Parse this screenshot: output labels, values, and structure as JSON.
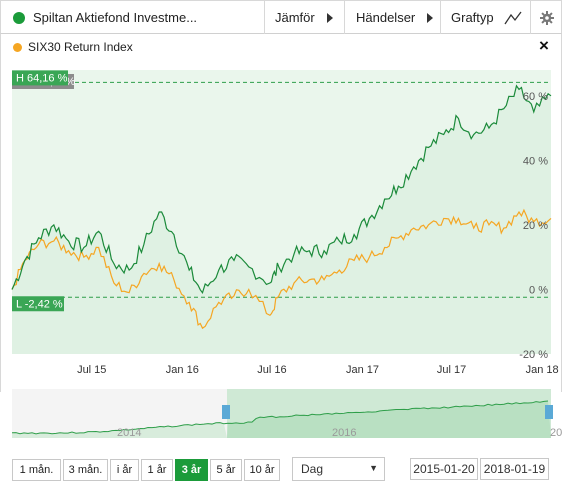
{
  "toolbar": {
    "fund_name": "Spiltan Aktiefond Investme...",
    "fund_color": "#1b9b3a",
    "compare_label": "Jämför",
    "events_label": "Händelser",
    "graphtype_label": "Graftyp",
    "settings_icon": "gear-icon"
  },
  "legend": {
    "series_name": "SIX30 Return Index",
    "series_color": "#f5a623",
    "close_symbol": "×"
  },
  "badges": {
    "change": "Utv. 60,03%",
    "high": "H 64,16 %",
    "low": "L -2,42 %"
  },
  "chart_data": {
    "type": "line",
    "y_unit": "%",
    "ylim": [
      -20,
      68
    ],
    "y_ticks": [
      "60 %",
      "40 %",
      "20 %",
      "0 %",
      "-20 %"
    ],
    "x_ticks": [
      "Jul 15",
      "Jan 16",
      "Jul 16",
      "Jan 17",
      "Jul 17",
      "Jan 18"
    ],
    "date_range": [
      "2015-01-20",
      "2018-01-19"
    ],
    "grid": "dashed high/low lines",
    "series": [
      {
        "color": "#1b8a3a",
        "x": [
          "2015-01-20",
          "2015-02-15",
          "2015-03-15",
          "2015-04-15",
          "2015-05-15",
          "2015-06-15",
          "2015-07-15",
          "2015-08-15",
          "2015-09-15",
          "2015-10-15",
          "2015-11-15",
          "2015-12-15",
          "2016-01-15",
          "2016-02-11",
          "2016-03-15",
          "2016-04-15",
          "2016-05-15",
          "2016-06-27",
          "2016-07-15",
          "2016-08-15",
          "2016-09-15",
          "2016-10-15",
          "2016-11-15",
          "2016-12-15",
          "2017-01-15",
          "2017-02-15",
          "2017-03-15",
          "2017-04-15",
          "2017-05-15",
          "2017-06-15",
          "2017-07-15",
          "2017-08-15",
          "2017-09-15",
          "2017-10-15",
          "2017-11-15",
          "2017-12-15",
          "2018-01-19"
        ],
        "y": [
          0,
          9,
          16,
          20,
          15,
          13,
          18,
          8,
          6,
          14,
          24,
          17,
          6,
          -1,
          6,
          9,
          7,
          2,
          7,
          11,
          12,
          12,
          15,
          17,
          22,
          28,
          32,
          38,
          44,
          48,
          53,
          48,
          50,
          56,
          62,
          55,
          60
        ]
      },
      {
        "color": "#f5a623",
        "x": [
          "2015-01-20",
          "2015-02-15",
          "2015-03-15",
          "2015-04-15",
          "2015-05-15",
          "2015-06-15",
          "2015-07-15",
          "2015-08-15",
          "2015-09-15",
          "2015-10-15",
          "2015-11-15",
          "2015-12-15",
          "2016-01-15",
          "2016-02-11",
          "2016-03-15",
          "2016-04-15",
          "2016-05-15",
          "2016-06-27",
          "2016-07-15",
          "2016-08-15",
          "2016-09-15",
          "2016-10-15",
          "2016-11-15",
          "2016-12-15",
          "2017-01-15",
          "2017-02-15",
          "2017-03-15",
          "2017-04-15",
          "2017-05-15",
          "2017-06-15",
          "2017-07-15",
          "2017-08-15",
          "2017-09-15",
          "2017-10-15",
          "2017-11-15",
          "2017-12-15",
          "2018-01-19"
        ],
        "y": [
          0,
          9,
          14,
          15,
          12,
          10,
          13,
          2,
          -1,
          5,
          8,
          3,
          -4,
          -12,
          -4,
          -2,
          0,
          -8,
          -2,
          2,
          3,
          3,
          6,
          9,
          10,
          13,
          16,
          19,
          20,
          22,
          22,
          19,
          20,
          19,
          24,
          21,
          22
        ]
      }
    ]
  },
  "navigator": {
    "labels": [
      "2014",
      "2016",
      "20"
    ]
  },
  "range_buttons": [
    "1 mån.",
    "3 mån.",
    "i år",
    "1 år",
    "3 år",
    "5 år",
    "10 år"
  ],
  "active_range": "3 år",
  "period_select": {
    "value": "Dag",
    "options": [
      "Dag"
    ]
  },
  "date_from": "2015-01-20",
  "date_to": "2018-01-19"
}
